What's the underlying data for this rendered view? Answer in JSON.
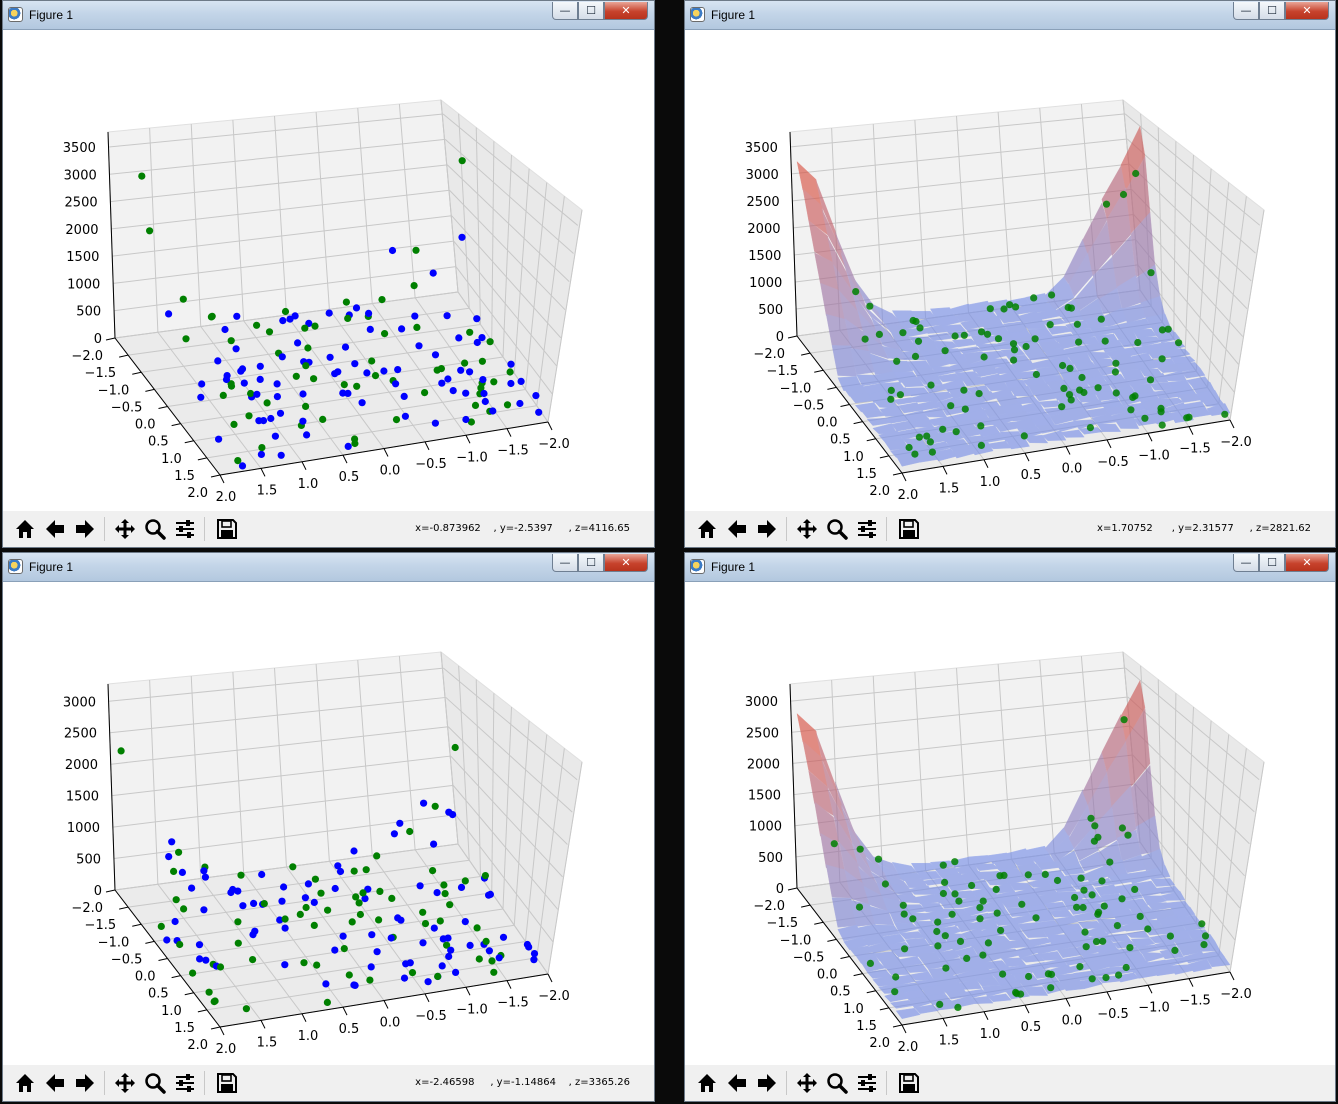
{
  "windows": [
    {
      "id": "top-left",
      "title": "Figure 1",
      "coords": "x=-0.873962    , y=-2.5397     , z=4116.65",
      "buttons": {
        "minimize": "—",
        "maximize": "☐",
        "close": "✕"
      }
    },
    {
      "id": "top-right",
      "title": "Figure 1",
      "coords": "x=1.70752      , y=2.31577     , z=2821.62",
      "buttons": {
        "minimize": "—",
        "maximize": "☐",
        "close": "✕"
      }
    },
    {
      "id": "bottom-left",
      "title": "Figure 1",
      "coords": "x=-2.46598     , y=-1.14864    , z=3365.26",
      "buttons": {
        "minimize": "—",
        "maximize": "☐",
        "close": "✕"
      }
    },
    {
      "id": "bottom-right",
      "title": "Figure 1",
      "coords": "",
      "buttons": {
        "minimize": "—",
        "maximize": "☐",
        "close": "✕"
      }
    }
  ],
  "toolbar_icons": [
    "home-icon",
    "back-arrow-icon",
    "forward-arrow-icon",
    "pan-icon",
    "zoom-icon",
    "configure-subplots-icon",
    "save-icon"
  ],
  "colors": {
    "training_points": "#008000",
    "predicted_points": "#0000ff",
    "surface_low": "#6f8ff0",
    "surface_high": "#d94c3c"
  },
  "chart_data": [
    {
      "type": "scatter3d",
      "z_ticks": [
        "0",
        "500",
        "1000",
        "1500",
        "2000",
        "2500",
        "3000",
        "3500"
      ],
      "y_ticks": [
        "−2.0",
        "−1.5",
        "−1.0",
        "−0.5",
        "0.0",
        "0.5",
        "1.0",
        "1.5",
        "2.0"
      ],
      "x_ticks": [
        "2.0",
        "1.5",
        "1.0",
        "0.5",
        "0.0",
        "−0.5",
        "−1.0",
        "−1.5",
        "−2.0"
      ],
      "series": [
        {
          "color": "#008000"
        },
        {
          "color": "#0000ff"
        }
      ]
    },
    {
      "type": "surface3d",
      "z_ticks": [
        "0",
        "500",
        "1000",
        "1500",
        "2000",
        "2500",
        "3000",
        "3500"
      ],
      "y_ticks": [
        "−2.0",
        "−1.5",
        "−1.0",
        "−0.5",
        "0.0",
        "0.5",
        "1.0",
        "1.5",
        "2.0"
      ],
      "x_ticks": [
        "2.0",
        "1.5",
        "1.0",
        "0.5",
        "0.0",
        "−0.5",
        "−1.0",
        "−1.5",
        "−2.0"
      ],
      "series": [
        {
          "color": "#008000"
        }
      ]
    },
    {
      "type": "scatter3d",
      "z_ticks": [
        "0",
        "500",
        "1000",
        "1500",
        "2000",
        "2500",
        "3000"
      ],
      "y_ticks": [
        "−2.0",
        "−1.5",
        "−1.0",
        "−0.5",
        "0.0",
        "0.5",
        "1.0",
        "1.5",
        "2.0"
      ],
      "x_ticks": [
        "2.0",
        "1.5",
        "1.0",
        "0.5",
        "0.0",
        "−0.5",
        "−1.0",
        "−1.5",
        "−2.0"
      ],
      "series": [
        {
          "color": "#008000"
        },
        {
          "color": "#0000ff"
        }
      ]
    },
    {
      "type": "surface3d",
      "z_ticks": [
        "0",
        "500",
        "1000",
        "1500",
        "2000",
        "2500",
        "3000"
      ],
      "y_ticks": [
        "−2.0",
        "−1.5",
        "−1.0",
        "−0.5",
        "0.0",
        "0.5",
        "1.0",
        "1.5",
        "2.0"
      ],
      "x_ticks": [
        "2.0",
        "1.5",
        "1.0",
        "0.5",
        "0.0",
        "−0.5",
        "−1.0",
        "−1.5",
        "−2.0"
      ],
      "series": [
        {
          "color": "#008000"
        }
      ]
    }
  ]
}
